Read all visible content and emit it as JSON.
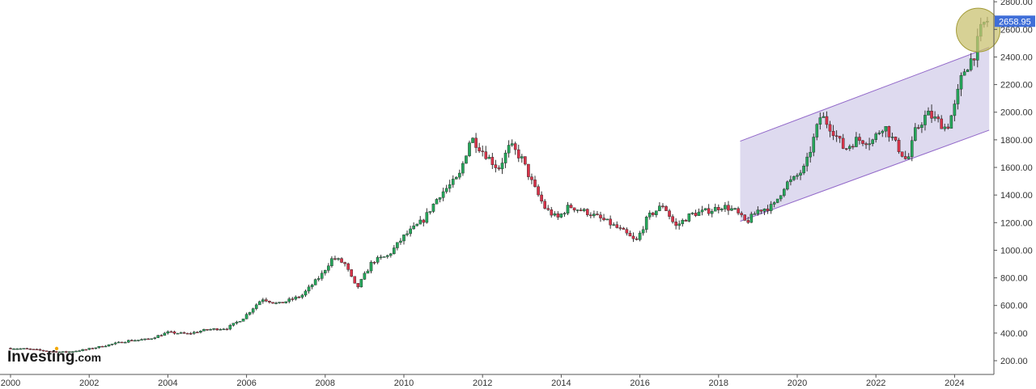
{
  "chart_data": {
    "type": "candlestick",
    "title": "",
    "xlabel": "",
    "ylabel": "",
    "interval": "monthly",
    "xlim": [
      1999.85,
      2025.6
    ],
    "ylim": [
      100,
      2880
    ],
    "x_ticks": [
      "2000",
      "2002",
      "2004",
      "2006",
      "2008",
      "2010",
      "2012",
      "2014",
      "2016",
      "2018",
      "2020",
      "2022",
      "2024"
    ],
    "y_ticks": [
      "200.00",
      "400.00",
      "600.00",
      "800.00",
      "1000.00",
      "1200.00",
      "1400.00",
      "1600.00",
      "1800.00",
      "2000.00",
      "2200.00",
      "2400.00",
      "2600.00",
      "2800.00"
    ],
    "last_price": "2658.95",
    "grid": false,
    "colors": {
      "up": "#26a65b",
      "down": "#d9334a",
      "wick": "#333333",
      "channel_fill": "#d8d3ec",
      "channel_line": "#9268c9",
      "price_label": "#3f6ed8",
      "highlight_fill": "#c9c272",
      "highlight_stroke": "#a39b38"
    },
    "close_anchors": [
      [
        2000.0,
        290
      ],
      [
        2000.4,
        285
      ],
      [
        2001.0,
        268
      ],
      [
        2001.4,
        262
      ],
      [
        2001.9,
        280
      ],
      [
        2002.5,
        315
      ],
      [
        2003.0,
        345
      ],
      [
        2003.5,
        355
      ],
      [
        2004.0,
        405
      ],
      [
        2004.5,
        395
      ],
      [
        2005.0,
        425
      ],
      [
        2005.5,
        435
      ],
      [
        2005.9,
        505
      ],
      [
        2006.4,
        650
      ],
      [
        2006.8,
        610
      ],
      [
        2007.4,
        670
      ],
      [
        2007.9,
        820
      ],
      [
        2008.2,
        950
      ],
      [
        2008.5,
        900
      ],
      [
        2008.8,
        720
      ],
      [
        2009.2,
        920
      ],
      [
        2009.6,
        960
      ],
      [
        2010.0,
        1100
      ],
      [
        2010.5,
        1220
      ],
      [
        2010.9,
        1400
      ],
      [
        2011.4,
        1530
      ],
      [
        2011.7,
        1820
      ],
      [
        2012.0,
        1720
      ],
      [
        2012.4,
        1590
      ],
      [
        2012.7,
        1760
      ],
      [
        2013.0,
        1660
      ],
      [
        2013.3,
        1460
      ],
      [
        2013.6,
        1300
      ],
      [
        2013.9,
        1230
      ],
      [
        2014.2,
        1320
      ],
      [
        2014.7,
        1270
      ],
      [
        2015.2,
        1200
      ],
      [
        2015.6,
        1130
      ],
      [
        2015.9,
        1060
      ],
      [
        2016.2,
        1240
      ],
      [
        2016.6,
        1330
      ],
      [
        2016.9,
        1170
      ],
      [
        2017.3,
        1260
      ],
      [
        2017.8,
        1290
      ],
      [
        2018.1,
        1320
      ],
      [
        2018.4,
        1290
      ],
      [
        2018.7,
        1200
      ],
      [
        2019.0,
        1290
      ],
      [
        2019.4,
        1320
      ],
      [
        2019.7,
        1480
      ],
      [
        2019.9,
        1510
      ],
      [
        2020.2,
        1600
      ],
      [
        2020.6,
        1980
      ],
      [
        2020.9,
        1870
      ],
      [
        2021.2,
        1730
      ],
      [
        2021.5,
        1800
      ],
      [
        2021.9,
        1790
      ],
      [
        2022.2,
        1910
      ],
      [
        2022.5,
        1770
      ],
      [
        2022.8,
        1640
      ],
      [
        2023.0,
        1860
      ],
      [
        2023.3,
        1990
      ],
      [
        2023.6,
        1930
      ],
      [
        2023.8,
        1880
      ],
      [
        2024.0,
        2040
      ],
      [
        2024.2,
        2280
      ],
      [
        2024.5,
        2420
      ],
      [
        2024.7,
        2630
      ],
      [
        2024.83,
        2658.95
      ]
    ],
    "channel": {
      "start_date": 2018.55,
      "end_date": 2024.88,
      "upper": [
        1790,
        2470
      ],
      "lower": [
        1210,
        1870
      ]
    },
    "highlight_circle": {
      "date": 2024.6,
      "price": 2595
    }
  },
  "branding": {
    "logo_text": "Investing",
    "logo_domain": ".com"
  }
}
